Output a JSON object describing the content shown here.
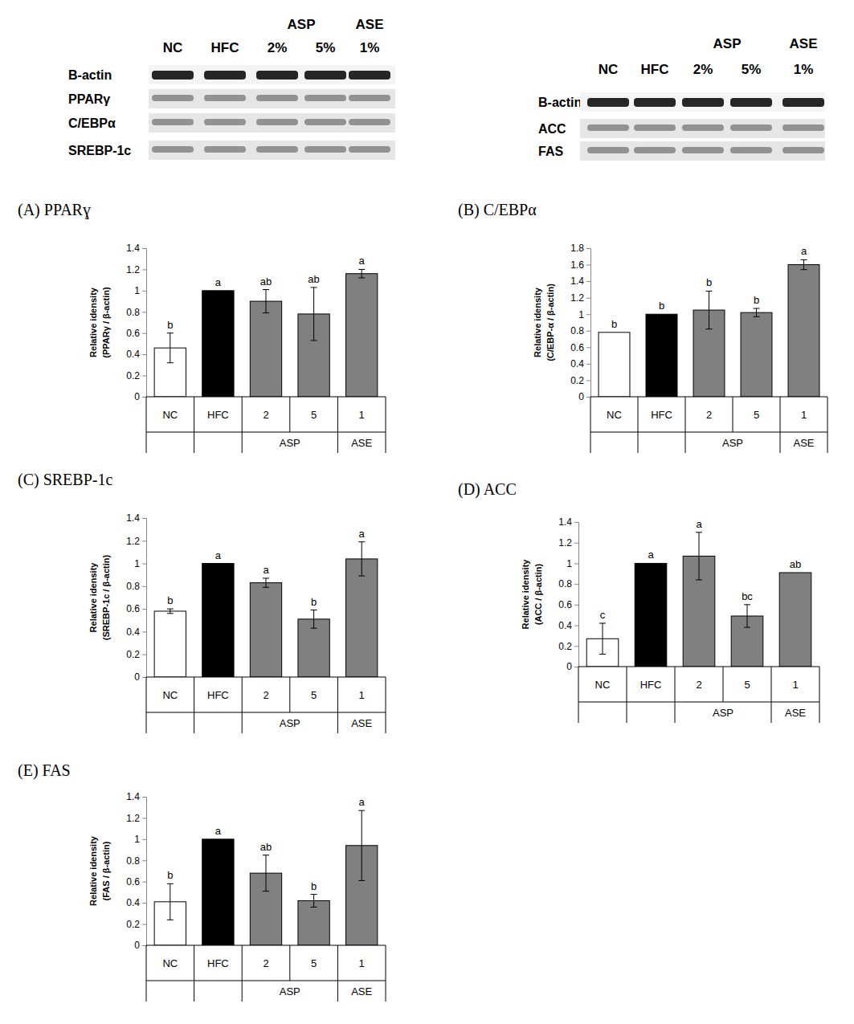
{
  "blots": [
    {
      "lanes": [
        "NC",
        "HFC",
        "2%",
        "5%",
        "1%"
      ],
      "lane_groups": [
        null,
        null,
        "ASP",
        "ASP",
        "ASE"
      ],
      "rows": [
        "B-actin",
        "PPARγ",
        "C/EBPα",
        "SREBP-1c"
      ]
    },
    {
      "lanes": [
        "NC",
        "HFC",
        "2%",
        "5%",
        "1%"
      ],
      "lane_groups": [
        null,
        null,
        "ASP",
        "ASP",
        "ASE"
      ],
      "rows": [
        "B-actin",
        "ACC",
        "FAS"
      ]
    }
  ],
  "chart_data": [
    {
      "type": "bar",
      "title": "(A)  PPARɣ",
      "ylabel": [
        "Relative idensity",
        "(PPARγ / β-actin)"
      ],
      "categories": [
        "NC",
        "HFC",
        "2",
        "5",
        "1"
      ],
      "group_labels": [
        null,
        null,
        "ASP",
        "ASP",
        "ASE"
      ],
      "values": [
        0.46,
        1.0,
        0.9,
        0.78,
        1.16
      ],
      "errors": [
        0.14,
        null,
        0.11,
        0.25,
        0.04
      ],
      "letters": [
        "b",
        "a",
        "ab",
        "ab",
        "a"
      ],
      "colors": [
        "#ffffff",
        "#000000",
        "#808080",
        "#808080",
        "#808080"
      ],
      "ylim": [
        0,
        1.4
      ],
      "yticks": [
        0,
        0.2,
        0.4,
        0.6,
        0.8,
        1,
        1.2,
        1.4
      ]
    },
    {
      "type": "bar",
      "title": "(B)  C/EBPα",
      "ylabel": [
        "Relative idensity",
        "(C/EBP-α / β-actin)"
      ],
      "categories": [
        "NC",
        "HFC",
        "2",
        "5",
        "1"
      ],
      "group_labels": [
        null,
        null,
        "ASP",
        "ASP",
        "ASE"
      ],
      "values": [
        0.78,
        1.0,
        1.05,
        1.02,
        1.6
      ],
      "errors": [
        null,
        null,
        0.23,
        0.05,
        0.06
      ],
      "letters": [
        "b",
        "b",
        "b",
        "b",
        "a"
      ],
      "colors": [
        "#ffffff",
        "#000000",
        "#808080",
        "#808080",
        "#808080"
      ],
      "ylim": [
        0,
        1.8
      ],
      "yticks": [
        0,
        0.2,
        0.4,
        0.6,
        0.8,
        1,
        1.2,
        1.4,
        1.6,
        1.8
      ]
    },
    {
      "type": "bar",
      "title": "(C)  SREBP-1c",
      "ylabel": [
        "Relative idensity",
        "(SREBP-1c / β-actin)"
      ],
      "categories": [
        "NC",
        "HFC",
        "2",
        "5",
        "1"
      ],
      "group_labels": [
        null,
        null,
        "ASP",
        "ASP",
        "ASE"
      ],
      "values": [
        0.58,
        1.0,
        0.83,
        0.51,
        1.04
      ],
      "errors": [
        0.02,
        null,
        0.04,
        0.08,
        0.15
      ],
      "letters": [
        "b",
        "a",
        "a",
        "b",
        "a"
      ],
      "colors": [
        "#ffffff",
        "#000000",
        "#808080",
        "#808080",
        "#808080"
      ],
      "ylim": [
        0,
        1.4
      ],
      "yticks": [
        0,
        0.2,
        0.4,
        0.6,
        0.8,
        1,
        1.2,
        1.4
      ]
    },
    {
      "type": "bar",
      "title": "(D)  ACC",
      "ylabel": [
        "Relative idensity",
        "(ACC / β-actin)"
      ],
      "categories": [
        "NC",
        "HFC",
        "2",
        "5",
        "1"
      ],
      "group_labels": [
        null,
        null,
        "ASP",
        "ASP",
        "ASE"
      ],
      "values": [
        0.27,
        1.0,
        1.07,
        0.49,
        0.91
      ],
      "errors": [
        0.15,
        null,
        0.23,
        0.11,
        null
      ],
      "letters": [
        "c",
        "a",
        "a",
        "bc",
        "ab"
      ],
      "colors": [
        "#ffffff",
        "#000000",
        "#808080",
        "#808080",
        "#808080"
      ],
      "ylim": [
        0,
        1.4
      ],
      "yticks": [
        0,
        0.2,
        0.4,
        0.6,
        0.8,
        1,
        1.2,
        1.4
      ]
    },
    {
      "type": "bar",
      "title": "(E)  FAS",
      "ylabel": [
        "Relative idensity",
        "(FAS / β-actin)"
      ],
      "categories": [
        "NC",
        "HFC",
        "2",
        "5",
        "1"
      ],
      "group_labels": [
        null,
        null,
        "ASP",
        "ASP",
        "ASE"
      ],
      "values": [
        0.41,
        1.0,
        0.68,
        0.42,
        0.94
      ],
      "errors": [
        0.17,
        null,
        0.17,
        0.06,
        0.33
      ],
      "letters": [
        "b",
        "a",
        "ab",
        "b",
        "a"
      ],
      "colors": [
        "#ffffff",
        "#000000",
        "#808080",
        "#808080",
        "#808080"
      ],
      "ylim": [
        0,
        1.4
      ],
      "yticks": [
        0,
        0.2,
        0.4,
        0.6,
        0.8,
        1,
        1.2,
        1.4
      ]
    }
  ]
}
